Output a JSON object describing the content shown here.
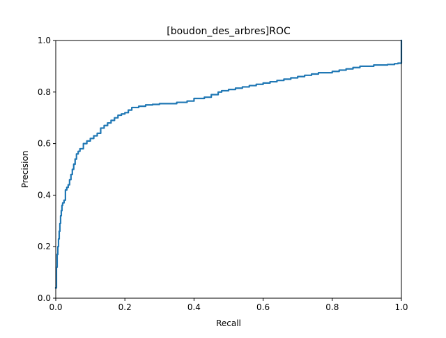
{
  "chart_data": {
    "type": "line",
    "title": "[boudon_des_arbres]ROC",
    "xlabel": "Recall",
    "ylabel": "Precision",
    "xlim": [
      0.0,
      1.0
    ],
    "ylim": [
      0.0,
      1.0
    ],
    "xticks": [
      "0.0",
      "0.2",
      "0.4",
      "0.6",
      "0.8",
      "1.0"
    ],
    "yticks": [
      "0.0",
      "0.2",
      "0.4",
      "0.6",
      "0.8",
      "1.0"
    ],
    "grid": false,
    "legend": "none",
    "series": [
      {
        "color": "#1f77b4",
        "x": [
          0.0,
          0.002,
          0.004,
          0.006,
          0.008,
          0.01,
          0.012,
          0.014,
          0.016,
          0.018,
          0.02,
          0.024,
          0.028,
          0.032,
          0.036,
          0.04,
          0.044,
          0.048,
          0.052,
          0.056,
          0.06,
          0.065,
          0.07,
          0.08,
          0.09,
          0.1,
          0.11,
          0.12,
          0.13,
          0.14,
          0.15,
          0.16,
          0.17,
          0.18,
          0.19,
          0.2,
          0.21,
          0.22,
          0.24,
          0.26,
          0.28,
          0.3,
          0.35,
          0.38,
          0.4,
          0.43,
          0.45,
          0.47,
          0.48,
          0.5,
          0.52,
          0.54,
          0.56,
          0.58,
          0.6,
          0.62,
          0.64,
          0.66,
          0.68,
          0.7,
          0.72,
          0.74,
          0.76,
          0.8,
          0.82,
          0.84,
          0.86,
          0.88,
          0.9,
          0.92,
          0.94,
          0.96,
          0.98,
          0.99,
          1.0,
          1.0
        ],
        "y": [
          0.04,
          0.12,
          0.17,
          0.2,
          0.23,
          0.26,
          0.29,
          0.32,
          0.34,
          0.36,
          0.37,
          0.38,
          0.42,
          0.43,
          0.44,
          0.46,
          0.48,
          0.5,
          0.52,
          0.54,
          0.56,
          0.57,
          0.58,
          0.6,
          0.61,
          0.62,
          0.63,
          0.64,
          0.66,
          0.67,
          0.68,
          0.69,
          0.7,
          0.71,
          0.715,
          0.72,
          0.73,
          0.74,
          0.745,
          0.75,
          0.752,
          0.755,
          0.76,
          0.765,
          0.775,
          0.78,
          0.79,
          0.8,
          0.805,
          0.81,
          0.815,
          0.82,
          0.825,
          0.83,
          0.835,
          0.84,
          0.845,
          0.85,
          0.855,
          0.86,
          0.865,
          0.87,
          0.875,
          0.88,
          0.885,
          0.89,
          0.895,
          0.9,
          0.9,
          0.905,
          0.905,
          0.907,
          0.91,
          0.912,
          0.912,
          1.0
        ]
      }
    ]
  }
}
